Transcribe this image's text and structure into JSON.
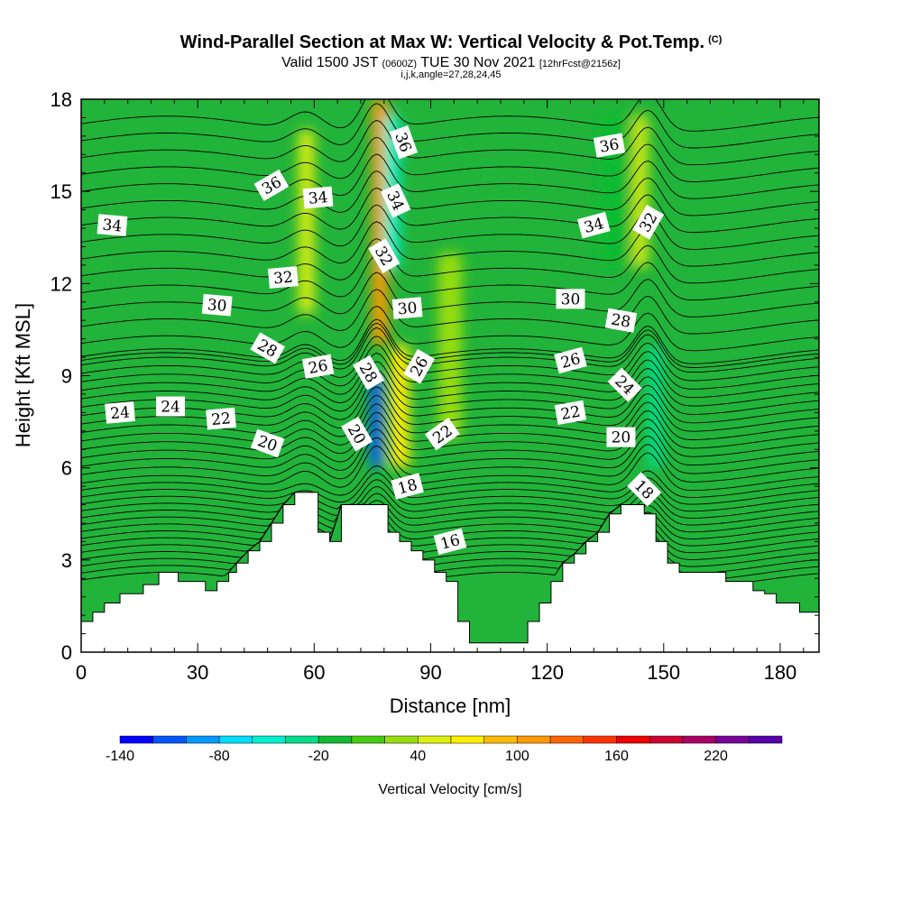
{
  "header": {
    "title": "Wind-Parallel Section at Max W: Vertical Velocity & Pot.Temp.",
    "copyright": "(C)",
    "valid_prefix": "Valid 1500 JST",
    "valid_utc": "(0600Z)",
    "valid_date": "TUE 30 Nov 2021",
    "forecast_info": "[12hrFcst@2156z]",
    "indices": "i,j,k,angle=27,28,24,45"
  },
  "chart_data": {
    "type": "heatmap",
    "xlabel": "Distance [nm]",
    "ylabel": "Height [Kft MSL]",
    "xlim": [
      0,
      190
    ],
    "ylim": [
      0,
      18
    ],
    "x_ticks": [
      0,
      30,
      60,
      90,
      120,
      150,
      180
    ],
    "y_ticks": [
      0,
      3,
      6,
      9,
      12,
      15,
      18
    ],
    "colorbar": {
      "label": "Vertical Velocity [cm/s]",
      "min": -140,
      "max": 260,
      "step": 20,
      "tick_labels": [
        "-140",
        "-80",
        "-20",
        "40",
        "100",
        "160",
        "220"
      ],
      "tick_values": [
        -140,
        -80,
        -20,
        40,
        100,
        160,
        220
      ],
      "colors": [
        "#0000ff",
        "#0055ff",
        "#0099ff",
        "#00ddff",
        "#00eecc",
        "#00dd88",
        "#11bb33",
        "#44cc11",
        "#99dd11",
        "#ddee11",
        "#ffee00",
        "#ffbb00",
        "#ff9900",
        "#ff6600",
        "#ff3300",
        "#ee0000",
        "#cc0033",
        "#aa0066",
        "#770099",
        "#5500aa"
      ]
    },
    "terrain_kft": [
      {
        "x": 0,
        "h": 1.0
      },
      {
        "x": 3,
        "h": 1.3
      },
      {
        "x": 6,
        "h": 1.6
      },
      {
        "x": 10,
        "h": 1.9
      },
      {
        "x": 16,
        "h": 2.2
      },
      {
        "x": 20,
        "h": 2.6
      },
      {
        "x": 25,
        "h": 2.3
      },
      {
        "x": 32,
        "h": 2.0
      },
      {
        "x": 35,
        "h": 2.3
      },
      {
        "x": 38,
        "h": 2.6
      },
      {
        "x": 40,
        "h": 2.9
      },
      {
        "x": 43,
        "h": 3.3
      },
      {
        "x": 46,
        "h": 3.6
      },
      {
        "x": 49,
        "h": 4.2
      },
      {
        "x": 52,
        "h": 4.8
      },
      {
        "x": 55,
        "h": 5.2
      },
      {
        "x": 58,
        "h": 5.2
      },
      {
        "x": 61,
        "h": 3.9
      },
      {
        "x": 64,
        "h": 3.6
      },
      {
        "x": 67,
        "h": 4.8
      },
      {
        "x": 76,
        "h": 4.8
      },
      {
        "x": 79,
        "h": 3.9
      },
      {
        "x": 82,
        "h": 3.6
      },
      {
        "x": 85,
        "h": 3.3
      },
      {
        "x": 88,
        "h": 3.0
      },
      {
        "x": 91,
        "h": 2.6
      },
      {
        "x": 94,
        "h": 2.3
      },
      {
        "x": 97,
        "h": 1.0
      },
      {
        "x": 100,
        "h": 0.3
      },
      {
        "x": 115,
        "h": 1.0
      },
      {
        "x": 118,
        "h": 1.6
      },
      {
        "x": 121,
        "h": 2.3
      },
      {
        "x": 124,
        "h": 2.9
      },
      {
        "x": 127,
        "h": 3.2
      },
      {
        "x": 130,
        "h": 3.6
      },
      {
        "x": 133,
        "h": 3.9
      },
      {
        "x": 136,
        "h": 4.5
      },
      {
        "x": 139,
        "h": 4.8
      },
      {
        "x": 145,
        "h": 4.5
      },
      {
        "x": 148,
        "h": 3.6
      },
      {
        "x": 151,
        "h": 2.9
      },
      {
        "x": 154,
        "h": 2.6
      },
      {
        "x": 157,
        "h": 2.6
      },
      {
        "x": 163,
        "h": 2.6
      },
      {
        "x": 166,
        "h": 2.3
      },
      {
        "x": 170,
        "h": 2.3
      },
      {
        "x": 173,
        "h": 2.0
      },
      {
        "x": 176,
        "h": 1.9
      },
      {
        "x": 179,
        "h": 1.6
      },
      {
        "x": 182,
        "h": 1.6
      },
      {
        "x": 185,
        "h": 1.3
      },
      {
        "x": 188,
        "h": 1.3
      },
      {
        "x": 190,
        "h": 1.3
      }
    ],
    "wind_features": [
      {
        "name": "updraft-core",
        "x": 77,
        "w": 2.0,
        "y": 14,
        "h": 8,
        "value": 100
      },
      {
        "name": "updraft-lower",
        "x": 82,
        "w": 2.5,
        "y": 8,
        "h": 4,
        "value": 60
      },
      {
        "name": "updraft-left",
        "x": 58,
        "w": 2.0,
        "y": 14,
        "h": 6,
        "value": 40
      },
      {
        "name": "updraft-right",
        "x": 144,
        "w": 1.8,
        "y": 15,
        "h": 5,
        "value": 40
      },
      {
        "name": "downdraft-core",
        "x": 80,
        "w": 2.0,
        "y": 15,
        "h": 5,
        "value": -60
      },
      {
        "name": "downdraft-lower",
        "x": 76,
        "w": 1.5,
        "y": 7.5,
        "h": 3,
        "value": -120
      },
      {
        "name": "downdraft-right",
        "x": 148,
        "w": 2.0,
        "y": 8,
        "h": 4,
        "value": -40
      },
      {
        "name": "downdraft-upper-right",
        "x": 137,
        "w": 4.0,
        "y": 15,
        "h": 5,
        "value": -20
      },
      {
        "name": "updraft-mid",
        "x": 95,
        "w": 3.0,
        "y": 10,
        "h": 6,
        "value": 20
      }
    ],
    "theta_contours": {
      "levels": [
        16,
        18,
        20,
        22,
        24,
        26,
        28,
        30,
        32,
        34,
        36
      ],
      "labels": [
        {
          "text": "34",
          "x": 8,
          "y": 13.9,
          "angle": 5
        },
        {
          "text": "36",
          "x": 49,
          "y": 15.2,
          "angle": -30
        },
        {
          "text": "34",
          "x": 61,
          "y": 14.8,
          "angle": -5
        },
        {
          "text": "32",
          "x": 52,
          "y": 12.2,
          "angle": -5
        },
        {
          "text": "30",
          "x": 35,
          "y": 11.3,
          "angle": 5
        },
        {
          "text": "28",
          "x": 48,
          "y": 9.9,
          "angle": 30
        },
        {
          "text": "26",
          "x": 61,
          "y": 9.3,
          "angle": -10
        },
        {
          "text": "24",
          "x": 10,
          "y": 7.8,
          "angle": -5
        },
        {
          "text": "24",
          "x": 23,
          "y": 8.0,
          "angle": 0
        },
        {
          "text": "22",
          "x": 36,
          "y": 7.6,
          "angle": -5
        },
        {
          "text": "20",
          "x": 48,
          "y": 6.8,
          "angle": 20
        },
        {
          "text": "36",
          "x": 83,
          "y": 16.6,
          "angle": 70
        },
        {
          "text": "34",
          "x": 81,
          "y": 14.7,
          "angle": 65
        },
        {
          "text": "32",
          "x": 78,
          "y": 12.9,
          "angle": 60
        },
        {
          "text": "30",
          "x": 84,
          "y": 11.2,
          "angle": -5
        },
        {
          "text": "28",
          "x": 74,
          "y": 9.1,
          "angle": 60
        },
        {
          "text": "26",
          "x": 87,
          "y": 9.3,
          "angle": -60
        },
        {
          "text": "20",
          "x": 71,
          "y": 7.1,
          "angle": 60
        },
        {
          "text": "22",
          "x": 93,
          "y": 7.1,
          "angle": -35
        },
        {
          "text": "18",
          "x": 84,
          "y": 5.4,
          "angle": -15
        },
        {
          "text": "16",
          "x": 95,
          "y": 3.6,
          "angle": -15
        },
        {
          "text": "36",
          "x": 136,
          "y": 16.5,
          "angle": -10
        },
        {
          "text": "34",
          "x": 132,
          "y": 13.9,
          "angle": -15
        },
        {
          "text": "32",
          "x": 146,
          "y": 14.0,
          "angle": -60
        },
        {
          "text": "30",
          "x": 126,
          "y": 11.5,
          "angle": 0
        },
        {
          "text": "28",
          "x": 139,
          "y": 10.8,
          "angle": 10
        },
        {
          "text": "26",
          "x": 126,
          "y": 9.5,
          "angle": -15
        },
        {
          "text": "24",
          "x": 140,
          "y": 8.7,
          "angle": 45
        },
        {
          "text": "22",
          "x": 126,
          "y": 7.8,
          "angle": -10
        },
        {
          "text": "20",
          "x": 139,
          "y": 7.0,
          "angle": 0
        },
        {
          "text": "18",
          "x": 145,
          "y": 5.3,
          "angle": 45
        }
      ]
    }
  }
}
